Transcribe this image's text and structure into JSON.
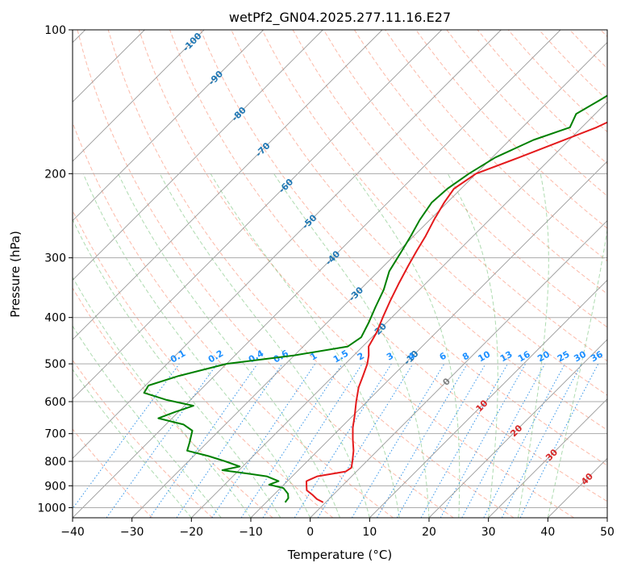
{
  "chart_data": {
    "type": "line",
    "title": "wetPf2_GN04.2025.277.11.16.E27",
    "xlabel": "Temperature (°C)",
    "ylabel": "Pressure (hPa)",
    "xlim": [
      -40,
      50
    ],
    "ylim": [
      1050,
      100
    ],
    "y_scale": "log",
    "skew_t": true,
    "grid": true,
    "x_ticks": [
      -40,
      -30,
      -20,
      -10,
      0,
      10,
      20,
      30,
      40,
      50
    ],
    "y_ticks": [
      100,
      200,
      300,
      400,
      500,
      600,
      700,
      800,
      900,
      1000
    ],
    "series": [
      {
        "color": "#e41a1c",
        "points": [
          [
            -4.0,
            100
          ],
          [
            -8.5,
            120
          ],
          [
            -12.3,
            140
          ],
          [
            -17.5,
            160
          ],
          [
            -25.5,
            185
          ],
          [
            -30.0,
            200
          ],
          [
            -31.2,
            215
          ],
          [
            -30.5,
            230
          ],
          [
            -29.3,
            250
          ],
          [
            -28.0,
            270
          ],
          [
            -27.0,
            290
          ],
          [
            -26.0,
            310
          ],
          [
            -24.5,
            340
          ],
          [
            -23.0,
            370
          ],
          [
            -21.5,
            400
          ],
          [
            -20.0,
            430
          ],
          [
            -19.0,
            460
          ],
          [
            -17.5,
            480
          ],
          [
            -16.3,
            500
          ],
          [
            -15.0,
            530
          ],
          [
            -13.8,
            560
          ],
          [
            -11.8,
            600
          ],
          [
            -9.8,
            640
          ],
          [
            -8.0,
            680
          ],
          [
            -6.0,
            720
          ],
          [
            -4.0,
            760
          ],
          [
            -2.4,
            800
          ],
          [
            -1.5,
            825
          ],
          [
            -1.8,
            840
          ],
          [
            -5.8,
            860
          ],
          [
            -6.8,
            880
          ],
          [
            -6.0,
            900
          ],
          [
            -5.2,
            920
          ],
          [
            -3.5,
            940
          ],
          [
            -2.0,
            960
          ],
          [
            -0.4,
            975
          ]
        ]
      },
      {
        "color": "#008000",
        "points": [
          [
            -11.0,
            100
          ],
          [
            -18.0,
            120
          ],
          [
            -21.5,
            140
          ],
          [
            -23.2,
            150
          ],
          [
            -22.0,
            160
          ],
          [
            -26.0,
            170
          ],
          [
            -29.5,
            185
          ],
          [
            -31.2,
            200
          ],
          [
            -32.3,
            215
          ],
          [
            -32.6,
            230
          ],
          [
            -31.7,
            250
          ],
          [
            -30.5,
            270
          ],
          [
            -29.5,
            290
          ],
          [
            -28.2,
            320
          ],
          [
            -26.0,
            350
          ],
          [
            -24.5,
            380
          ],
          [
            -23.0,
            410
          ],
          [
            -21.8,
            440
          ],
          [
            -22.5,
            460
          ],
          [
            -30.0,
            480
          ],
          [
            -40.0,
            500
          ],
          [
            -46.0,
            530
          ],
          [
            -49.5,
            555
          ],
          [
            -49.0,
            575
          ],
          [
            -44.0,
            595
          ],
          [
            -38.5,
            612
          ],
          [
            -40.5,
            630
          ],
          [
            -42.3,
            650
          ],
          [
            -37.0,
            670
          ],
          [
            -34.5,
            690
          ],
          [
            -33.0,
            730
          ],
          [
            -32.0,
            760
          ],
          [
            -27.5,
            780
          ],
          [
            -23.8,
            800
          ],
          [
            -20.5,
            820
          ],
          [
            -22.8,
            835
          ],
          [
            -17.5,
            850
          ],
          [
            -14.3,
            860
          ],
          [
            -11.5,
            880
          ],
          [
            -12.5,
            895
          ],
          [
            -9.5,
            910
          ],
          [
            -7.8,
            935
          ],
          [
            -7.0,
            955
          ],
          [
            -6.8,
            975
          ]
        ]
      }
    ],
    "background_lines": {
      "dry_adiabat_color": "#fa8060",
      "moist_adiabat_color": "#4caf50",
      "mixing_ratio_color": "#1e88e5",
      "isotherm_color": "#999999",
      "isotherm_labels": [
        {
          "value": "-100",
          "t": -100,
          "p": 106
        },
        {
          "value": "-90",
          "t": -90,
          "p": 126
        },
        {
          "value": "-80",
          "t": -80,
          "p": 150
        },
        {
          "value": "-70",
          "t": -70,
          "p": 178
        },
        {
          "value": "-60",
          "t": -60,
          "p": 212
        },
        {
          "value": "-50",
          "t": -50,
          "p": 252
        },
        {
          "value": "-40",
          "t": -40,
          "p": 300
        },
        {
          "value": "-30",
          "t": -30,
          "p": 357
        },
        {
          "value": "-20",
          "t": -20,
          "p": 425
        },
        {
          "value": "-10",
          "t": -10,
          "p": 485
        },
        {
          "value": "0",
          "t": 0,
          "p": 545
        },
        {
          "value": "10",
          "t": 10,
          "p": 612
        },
        {
          "value": "20",
          "t": 20,
          "p": 690
        },
        {
          "value": "30",
          "t": 30,
          "p": 775
        },
        {
          "value": "40",
          "t": 40,
          "p": 870
        }
      ],
      "mixing_ratio_labels": [
        "0.1",
        "0.2",
        "0.4",
        "0.6",
        "1",
        "1.5",
        "2",
        "3",
        "4",
        "6",
        "8",
        "10",
        "13",
        "16",
        "20",
        "25",
        "30",
        "36"
      ]
    }
  }
}
